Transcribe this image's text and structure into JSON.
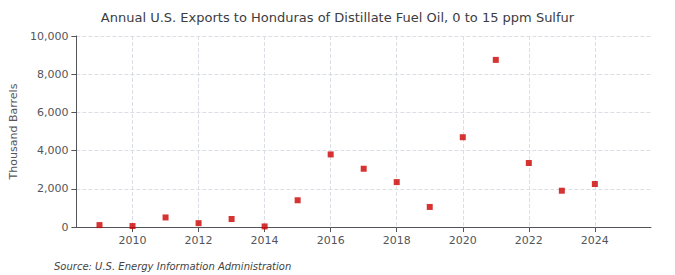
{
  "chart_data": {
    "type": "scatter",
    "title": "Annual U.S. Exports to Honduras of Distillate Fuel Oil, 0 to 15 ppm Sulfur",
    "ylabel": "Thousand Barrels",
    "annotations": [
      "Source: U.S. Energy Information Administration"
    ],
    "x": [
      2009,
      2010,
      2011,
      2012,
      2013,
      2014,
      2015,
      2016,
      2017,
      2018,
      2019,
      2020,
      2021,
      2022,
      2023,
      2024
    ],
    "values": [
      100,
      50,
      500,
      200,
      420,
      30,
      1400,
      3800,
      3050,
      2350,
      1050,
      4700,
      8750,
      3350,
      1900,
      2250
    ],
    "color": "#cc0000",
    "marker": "square",
    "xlim": [
      2008.3,
      2025.7
    ],
    "xticks": [
      2010,
      2012,
      2014,
      2016,
      2018,
      2020,
      2022,
      2024
    ],
    "ylim": [
      0,
      10000
    ],
    "yticks": [
      0,
      {
        "value": 2000,
        "label": "2,000"
      },
      {
        "value": 4000,
        "label": "4,000"
      },
      {
        "value": 6000,
        "label": "6,000"
      },
      {
        "value": 8000,
        "label": "8,000"
      },
      {
        "value": 10000,
        "label": "10,000"
      }
    ],
    "grid": true
  }
}
